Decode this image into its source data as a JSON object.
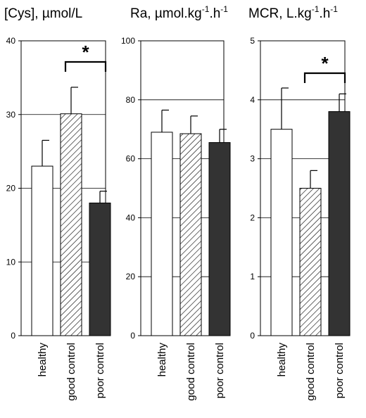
{
  "chart_data": [
    {
      "type": "bar",
      "title": "[Cys], µmol/L",
      "categories": [
        "healthy",
        "good control",
        "poor control"
      ],
      "values": [
        23,
        30.1,
        18
      ],
      "errors": [
        3.5,
        3.6,
        1.6
      ],
      "ylim": [
        0,
        40
      ],
      "yticks": [
        "0",
        "10",
        "20",
        "30",
        "40"
      ],
      "fills": [
        "white",
        "hatched",
        "#333333"
      ],
      "grid": true,
      "significance": {
        "from": 1,
        "to": 2,
        "label": "*"
      }
    },
    {
      "type": "bar",
      "title_main": "Ra, µmol.kg",
      "title_sup1": "-1",
      "title_mid": ".h",
      "title_sup2": "-1",
      "categories": [
        "healthy",
        "good control",
        "poor control"
      ],
      "values": [
        69,
        68.5,
        65.5
      ],
      "errors": [
        7.5,
        6,
        4.5
      ],
      "ylim": [
        0,
        100
      ],
      "yticks": [
        "0",
        "20",
        "40",
        "60",
        "80",
        "100"
      ],
      "fills": [
        "white",
        "hatched",
        "#333333"
      ],
      "grid": true
    },
    {
      "type": "bar",
      "title_main": "MCR, L.kg",
      "title_sup1": "-1",
      "title_mid": ".h",
      "title_sup2": "-1",
      "categories": [
        "healthy",
        "good control",
        "poor control"
      ],
      "values": [
        3.5,
        2.5,
        3.8
      ],
      "errors": [
        0.7,
        0.3,
        0.3
      ],
      "ylim": [
        0,
        5
      ],
      "yticks": [
        "0",
        "1",
        "2",
        "3",
        "4",
        "5"
      ],
      "fills": [
        "white",
        "hatched",
        "#333333"
      ],
      "grid": true,
      "significance": {
        "from": 1,
        "to": 2,
        "label": "*"
      }
    }
  ]
}
